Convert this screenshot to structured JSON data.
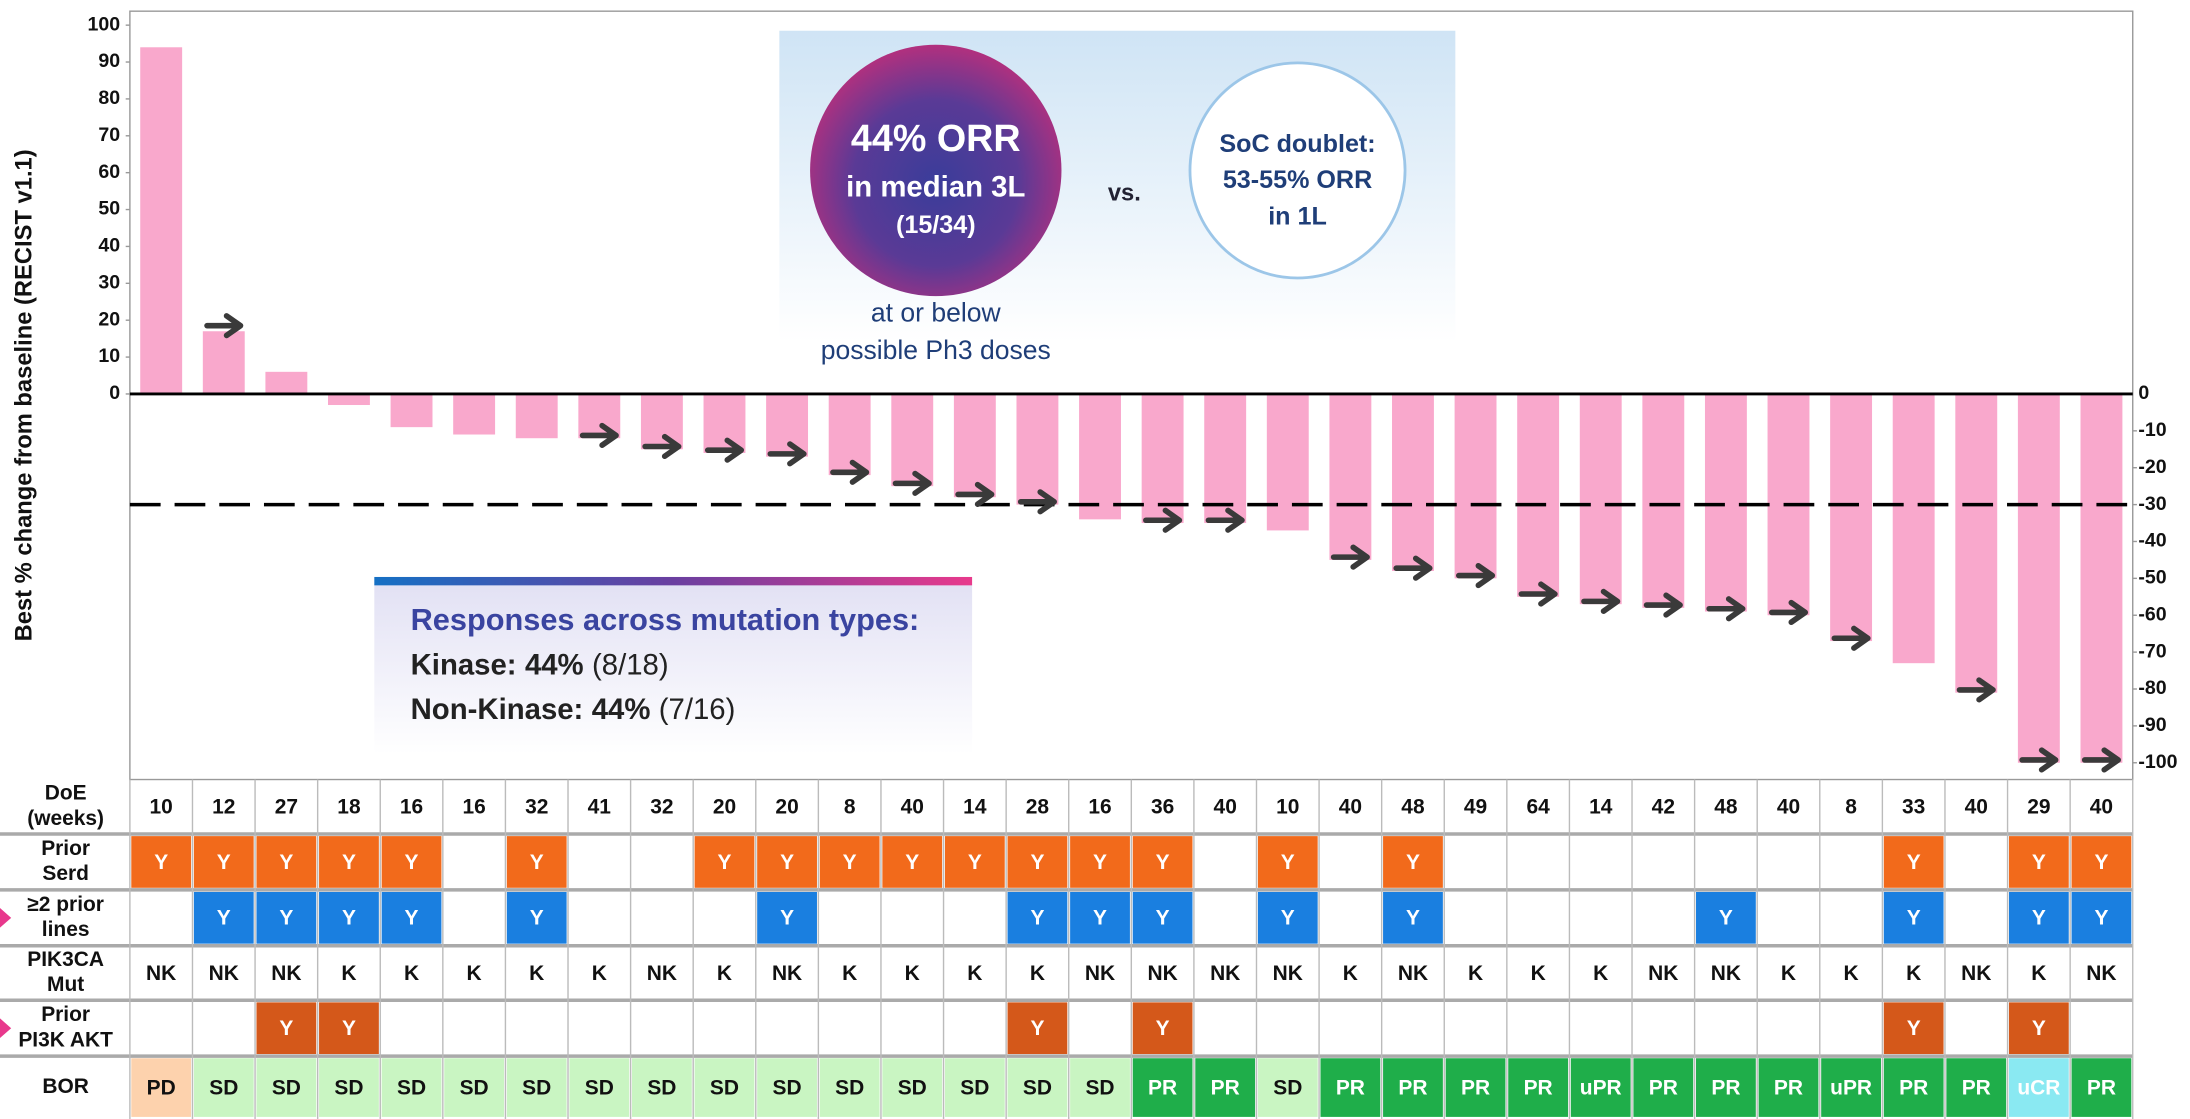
{
  "chart_data": {
    "type": "bar",
    "y_label": "Best % change from baseline (RECIST v1.1)",
    "values": [
      94,
      17,
      6,
      -3,
      -9,
      -11,
      -12,
      -12,
      -15,
      -16,
      -17,
      -22,
      -25,
      -28,
      -30,
      -34,
      -35,
      -35,
      -37,
      -45,
      -48,
      -50,
      -55,
      -57,
      -58,
      -59,
      -60,
      -67,
      -73,
      -81,
      -100,
      -100
    ],
    "ongoing": [
      false,
      true,
      false,
      false,
      false,
      false,
      false,
      true,
      true,
      true,
      true,
      true,
      true,
      true,
      true,
      false,
      true,
      true,
      false,
      true,
      true,
      true,
      true,
      true,
      true,
      true,
      true,
      true,
      false,
      true,
      true,
      true
    ],
    "color": "#f9a8cc",
    "arrow_color": "#3a3a3a",
    "ylim": [
      -100,
      100
    ],
    "yticks": [
      -100,
      -90,
      -80,
      -70,
      -60,
      -50,
      -40,
      -30,
      -20,
      -10,
      0,
      10,
      20,
      30,
      40,
      50,
      60,
      70,
      80,
      90,
      100
    ],
    "reference_line": -30,
    "orr_circle": [
      "44% ORR",
      "in median 3L",
      "(15/34)"
    ],
    "vs": "vs.",
    "soc_circle": [
      "SoC doublet:",
      "53-55% ORR",
      "in 1L"
    ],
    "dose_note": [
      "at or below",
      "possible Ph3 doses"
    ],
    "mutation_box": {
      "title": "Responses across mutation types:",
      "lines": [
        [
          "Kinase:",
          "44%",
          "(8/18)"
        ],
        [
          "Non-Kinase:",
          "44%",
          "(7/16)"
        ]
      ]
    },
    "table": {
      "rows": [
        {
          "label": [
            "DoE",
            "(weeks)"
          ],
          "values": [
            10,
            12,
            27,
            18,
            16,
            16,
            32,
            41,
            32,
            20,
            20,
            8,
            40,
            14,
            28,
            16,
            36,
            40,
            10,
            40,
            48,
            49,
            64,
            14,
            42,
            48,
            40,
            8,
            33,
            40,
            29,
            40
          ]
        },
        {
          "label": [
            "Prior",
            "Serd"
          ],
          "color": "#f26a1b",
          "values": [
            "Y",
            "Y",
            "Y",
            "Y",
            "Y",
            null,
            "Y",
            null,
            null,
            "Y",
            "Y",
            "Y",
            "Y",
            "Y",
            "Y",
            "Y",
            "Y",
            null,
            "Y",
            null,
            "Y",
            null,
            null,
            null,
            null,
            null,
            null,
            null,
            "Y",
            null,
            "Y",
            "Y"
          ]
        },
        {
          "label": [
            "≥2 prior",
            "lines"
          ],
          "color": "#1a7fe0",
          "marker": true,
          "values": [
            null,
            "Y",
            "Y",
            "Y",
            "Y",
            null,
            "Y",
            null,
            null,
            null,
            "Y",
            null,
            null,
            null,
            "Y",
            "Y",
            "Y",
            null,
            "Y",
            null,
            "Y",
            null,
            null,
            null,
            null,
            "Y",
            null,
            null,
            "Y",
            null,
            "Y",
            "Y"
          ]
        },
        {
          "label": [
            "PIK3CA",
            "Mut"
          ],
          "values": [
            "NK",
            "NK",
            "NK",
            "K",
            "K",
            "K",
            "K",
            "K",
            "NK",
            "K",
            "NK",
            "K",
            "K",
            "K",
            "K",
            "NK",
            "NK",
            "NK",
            "NK",
            "K",
            "NK",
            "K",
            "K",
            "K",
            "NK",
            "NK",
            "K",
            "K",
            "K",
            "NK",
            "K",
            "NK"
          ]
        },
        {
          "label": [
            "Prior",
            "PI3K AKT"
          ],
          "color": "#d4581a",
          "marker": true,
          "values": [
            null,
            null,
            "Y",
            "Y",
            null,
            null,
            null,
            null,
            null,
            null,
            null,
            null,
            null,
            null,
            "Y",
            null,
            "Y",
            null,
            null,
            null,
            null,
            null,
            null,
            null,
            null,
            null,
            null,
            null,
            "Y",
            null,
            "Y",
            null
          ]
        },
        {
          "label": [
            "BOR"
          ],
          "values": [
            "PD",
            "SD",
            "SD",
            "SD",
            "SD",
            "SD",
            "SD",
            "SD",
            "SD",
            "SD",
            "SD",
            "SD",
            "SD",
            "SD",
            "SD",
            "SD",
            "PR",
            "PR",
            "SD",
            "PR",
            "PR",
            "PR",
            "PR",
            "uPR",
            "PR",
            "PR",
            "PR",
            "uPR",
            "PR",
            "PR",
            "uCR",
            "PR"
          ],
          "cell_colors": {
            "PD": "#fdd2ad",
            "SD": "#c9f5c2",
            "PR": "#1fae4a",
            "uPR": "#1fae4a",
            "uCR": "#8ae9f2"
          }
        }
      ]
    }
  }
}
